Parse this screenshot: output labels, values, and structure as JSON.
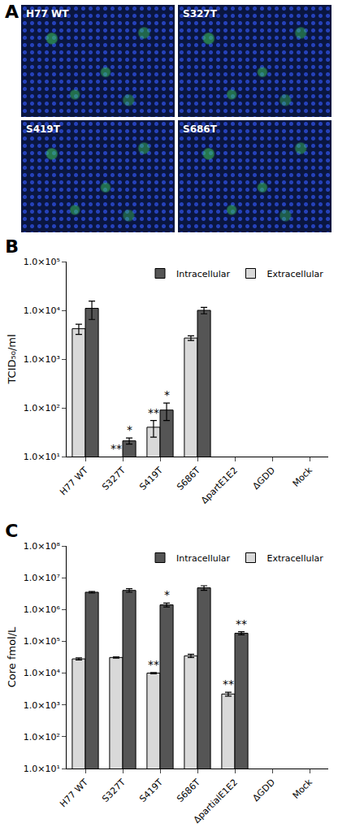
{
  "image_panel": {
    "title": "A",
    "images": [
      "H77 WT",
      "S327T",
      "S419T",
      "S686T"
    ]
  },
  "chart_data": [
    {
      "type": "bar",
      "title": "B",
      "y_label": "TCID₅₀/ml",
      "log": "y",
      "grid": false,
      "legend": "top right",
      "categories": [
        "H77 WT",
        "S327T",
        "S419T",
        "S686T",
        "ΔpartE1E2",
        "ΔGDD",
        "Mock"
      ],
      "ylim": [
        10,
        100000
      ],
      "yticks": [
        {
          "value": 10,
          "label": "1.0×10¹"
        },
        {
          "value": 100,
          "label": "1.0×10²"
        },
        {
          "value": 1000,
          "label": "1.0×10³"
        },
        {
          "value": 10000,
          "label": "1.0×10⁴"
        },
        {
          "value": 100000,
          "label": "1.0×10⁵"
        }
      ],
      "series": [
        {
          "name": "Extracellular",
          "color": "#d9d9d9",
          "values": [
            4200,
            null,
            40,
            2700,
            null,
            null,
            null
          ],
          "errors": [
            1000,
            null,
            15,
            300,
            null,
            null,
            null
          ],
          "significance": [
            null,
            "**",
            "**",
            null,
            null,
            null,
            null
          ]
        },
        {
          "name": "Intracellular",
          "color": "#555555",
          "values": [
            11000,
            21,
            90,
            10000,
            null,
            null,
            null
          ],
          "errors": [
            4500,
            3,
            35,
            1500,
            null,
            null,
            null
          ],
          "significance": [
            null,
            "*",
            "*",
            null,
            null,
            null,
            null
          ]
        }
      ]
    },
    {
      "type": "bar",
      "title": "C",
      "y_label": "Core fmol/L",
      "log": "y",
      "grid": false,
      "legend": "top right",
      "categories": [
        "H77 WT",
        "S327T",
        "S419T",
        "S686T",
        "ΔpartialE1E2",
        "ΔGDD",
        "Mock"
      ],
      "ylim": [
        10,
        100000000
      ],
      "yticks": [
        {
          "value": 10,
          "label": "1.0×10¹"
        },
        {
          "value": 100,
          "label": "1.0×10²"
        },
        {
          "value": 1000,
          "label": "1.0×10³"
        },
        {
          "value": 10000,
          "label": "1.0×10⁴"
        },
        {
          "value": 100000,
          "label": "1.0×10⁵"
        },
        {
          "value": 1000000,
          "label": "1.0×10⁶"
        },
        {
          "value": 10000000,
          "label": "1.0×10⁷"
        },
        {
          "value": 100000000,
          "label": "1.0×10⁸"
        }
      ],
      "series": [
        {
          "name": "Extracellular",
          "color": "#d9d9d9",
          "values": [
            28000,
            31000,
            10000,
            35000,
            2200,
            null,
            null
          ],
          "errors": [
            2000,
            1500,
            500,
            4000,
            300,
            null,
            null
          ],
          "significance": [
            null,
            null,
            "**",
            null,
            "**",
            null,
            null
          ]
        },
        {
          "name": "Intracellular",
          "color": "#555555",
          "values": [
            3500000,
            4000000,
            1400000,
            4800000,
            180000,
            null,
            null
          ],
          "errors": [
            200000,
            500000,
            200000,
            800000,
            20000,
            null,
            null
          ],
          "significance": [
            null,
            null,
            "*",
            null,
            "**",
            null,
            null
          ]
        }
      ]
    }
  ]
}
